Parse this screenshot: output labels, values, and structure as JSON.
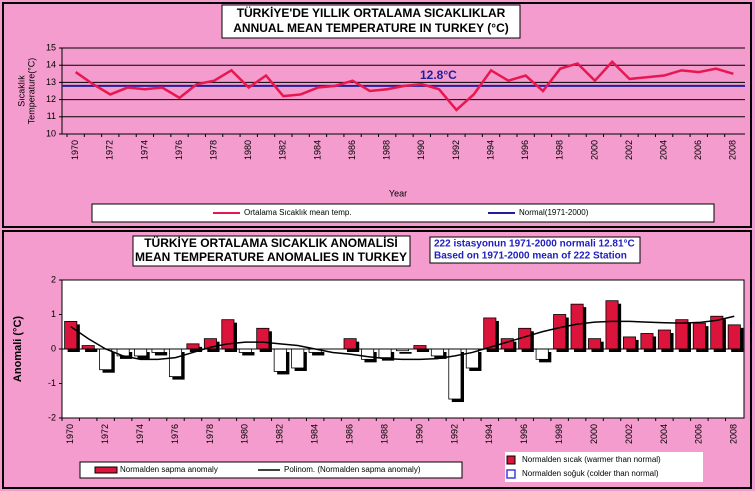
{
  "chart_data": [
    {
      "type": "line",
      "title": [
        "TÜRKİYE'DE YILLIK ORTALAMA SICAKLIKLAR",
        "ANNUAL MEAN TEMPERATURE IN TURKEY (°C)"
      ],
      "ylabel": [
        "Sıcaklık",
        "Temperature(°C)"
      ],
      "xlabel": "Year",
      "categories": [
        "1970",
        null,
        "1972",
        null,
        "1974",
        null,
        "1976",
        null,
        "1978",
        null,
        "1980",
        null,
        "1982",
        null,
        "1984",
        null,
        "1986",
        null,
        "1988",
        null,
        "1990",
        null,
        "1992",
        null,
        "1994",
        null,
        "1996",
        null,
        "1998",
        null,
        "2000",
        null,
        "2002",
        null,
        "2004",
        null,
        "2006",
        null,
        "2008"
      ],
      "series": [
        {
          "name": "Ortalama Sıcaklık mean temp.",
          "color": "#e8174f",
          "values": [
            13.6,
            12.9,
            12.3,
            12.7,
            12.6,
            12.7,
            12.1,
            12.9,
            13.1,
            13.7,
            12.7,
            13.4,
            12.2,
            12.3,
            12.7,
            12.8,
            13.1,
            12.5,
            12.6,
            12.8,
            12.9,
            12.6,
            11.4,
            12.3,
            13.7,
            13.1,
            13.4,
            12.5,
            13.8,
            14.1,
            13.1,
            14.2,
            13.2,
            13.3,
            13.4,
            13.7,
            13.6,
            13.8,
            13.5
          ]
        }
      ],
      "reference": {
        "name": "Normal(1971-2000)",
        "value": 12.8,
        "label": "12.8°C",
        "color": "#1f1f9a"
      },
      "ylim": [
        10,
        15
      ],
      "yticks": [
        10,
        11,
        12,
        13,
        14,
        15
      ],
      "grid": true
    },
    {
      "type": "bar",
      "title": [
        "TÜRKİYE ORTALAMA SICAKLIK ANOMALİSİ",
        "MEAN TEMPERATURE ANOMALIES IN  TURKEY"
      ],
      "note": [
        "222 istasyonun 1971-2000 normali 12.81°C",
        "Based on 1971-2000 mean of 222 Station"
      ],
      "ylabel": "Anomali (°C)",
      "categories": [
        "1970",
        null,
        "1972",
        null,
        "1974",
        null,
        "1976",
        null,
        "1978",
        null,
        "1980",
        null,
        "1982",
        null,
        "1984",
        null,
        "1986",
        null,
        "1988",
        null,
        "1990",
        null,
        "1992",
        null,
        "1994",
        null,
        "1996",
        null,
        "1998",
        null,
        "2000",
        null,
        "2002",
        null,
        "2004",
        null,
        "2006",
        null,
        "2008"
      ],
      "series": [
        {
          "name": "Normalden sapma anomaly",
          "color": "#dc143c",
          "negative_color": "#ffffff",
          "values": [
            0.8,
            0.1,
            -0.6,
            -0.2,
            -0.2,
            -0.1,
            -0.8,
            0.15,
            0.3,
            0.85,
            -0.1,
            0.6,
            -0.65,
            -0.55,
            -0.1,
            0.0,
            0.3,
            -0.3,
            -0.25,
            -0.05,
            0.1,
            -0.2,
            -1.45,
            -0.55,
            0.9,
            0.3,
            0.6,
            -0.3,
            1.0,
            1.3,
            0.3,
            1.4,
            0.35,
            0.45,
            0.55,
            0.85,
            0.75,
            0.95,
            0.7
          ]
        },
        {
          "name": "Polinom. (Normalden sapma anomaly)",
          "type": "line",
          "color": "#000000",
          "values": [
            0.65,
            0.3,
            0.0,
            -0.2,
            -0.3,
            -0.3,
            -0.25,
            -0.1,
            0.05,
            0.15,
            0.2,
            0.2,
            0.15,
            0.1,
            0.0,
            -0.1,
            -0.15,
            -0.22,
            -0.28,
            -0.3,
            -0.3,
            -0.28,
            -0.2,
            -0.1,
            0.05,
            0.2,
            0.35,
            0.5,
            0.62,
            0.72,
            0.78,
            0.8,
            0.8,
            0.78,
            0.76,
            0.75,
            0.77,
            0.83,
            0.95
          ]
        }
      ],
      "sign_legend": [
        "Normalden sıcak (warmer than normal)",
        "Normalden soğuk (colder than normal)"
      ],
      "ylim": [
        -2,
        2
      ],
      "yticks": [
        -2,
        -1,
        0,
        1,
        2
      ],
      "grid": false
    }
  ]
}
